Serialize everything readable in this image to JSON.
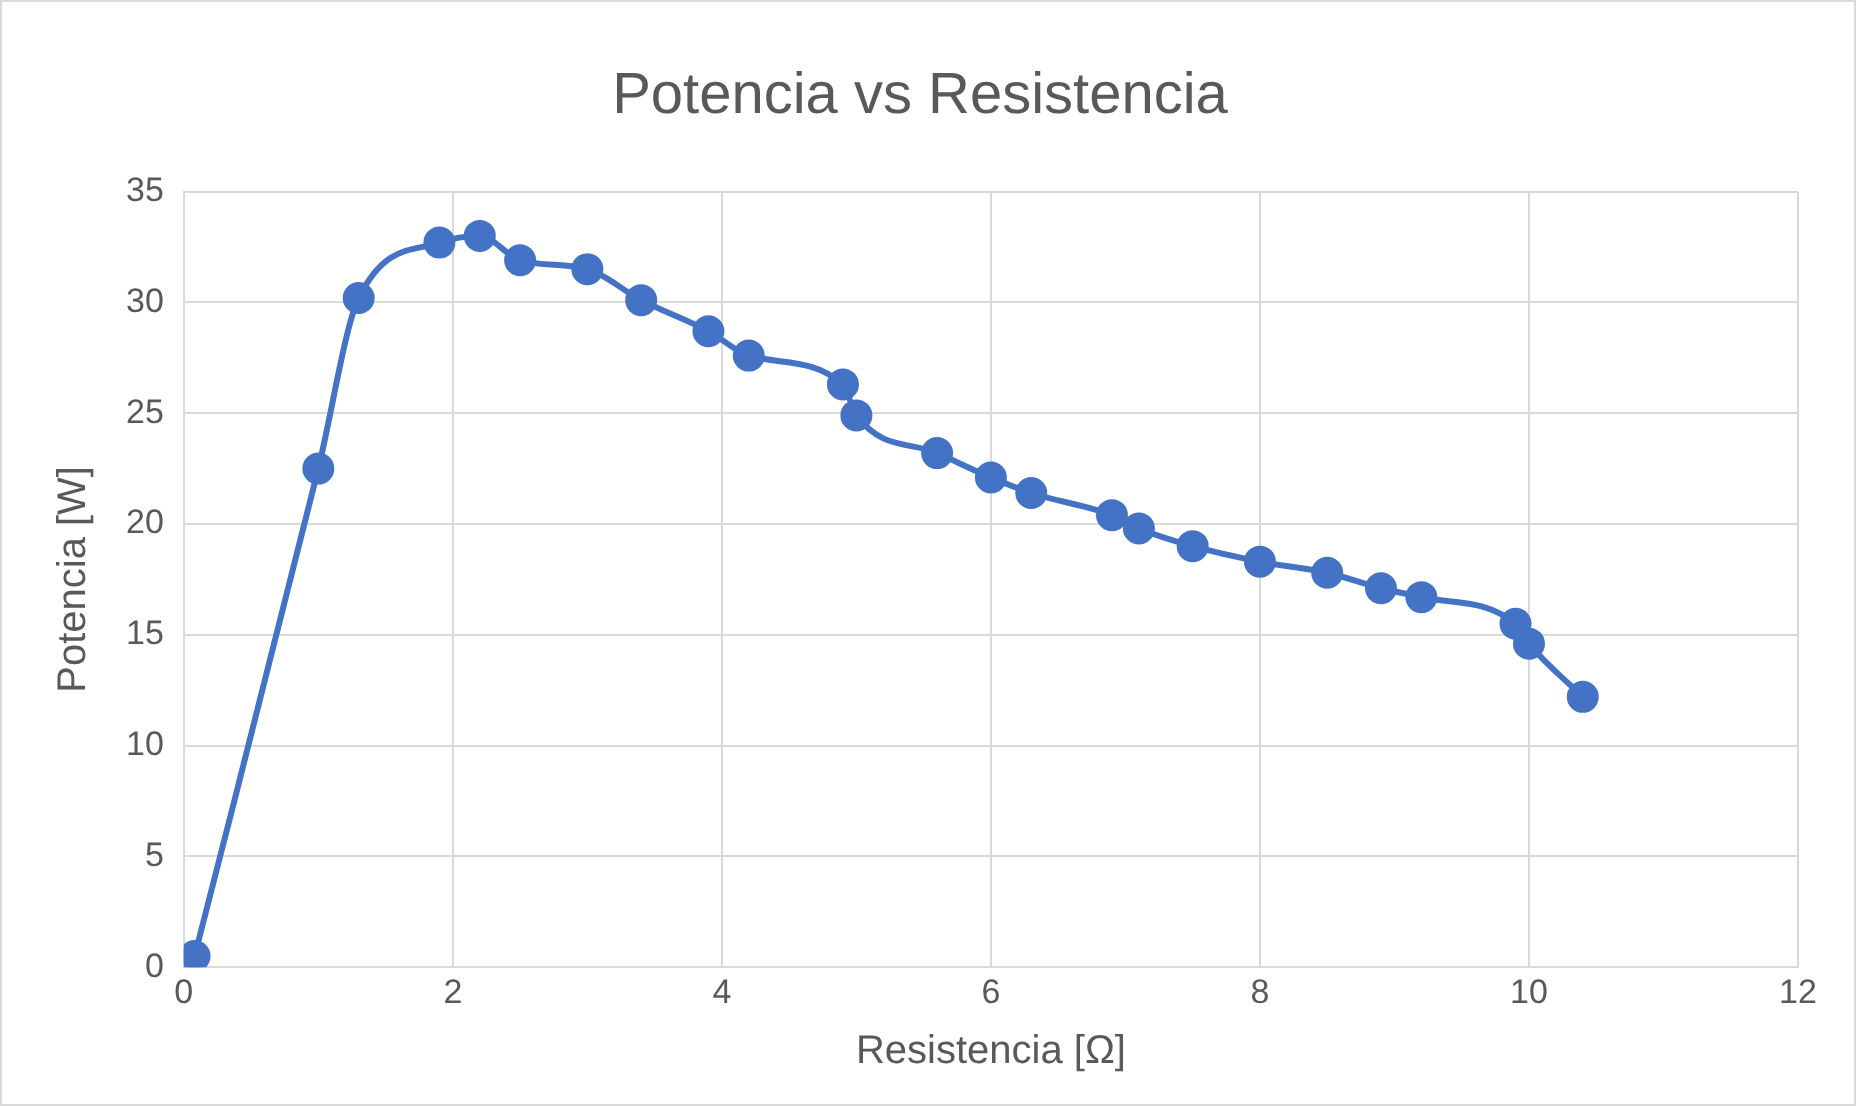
{
  "chart_data": {
    "type": "line",
    "title": "Potencia vs Resistencia",
    "xlabel": "Resistencia [Ω]",
    "ylabel": "Potencia [W]",
    "x": [
      0.08,
      1.0,
      1.3,
      1.9,
      2.2,
      2.5,
      3.0,
      3.4,
      3.9,
      4.2,
      4.9,
      5.0,
      5.6,
      6.0,
      6.3,
      6.9,
      7.1,
      7.5,
      8.0,
      8.5,
      8.9,
      9.2,
      9.9,
      10.0,
      10.4
    ],
    "series": [
      {
        "color": "#4472c4",
        "values": [
          0.5,
          22.5,
          30.2,
          32.7,
          33.0,
          31.9,
          31.5,
          30.1,
          28.7,
          27.6,
          26.3,
          24.9,
          23.2,
          22.1,
          21.4,
          20.4,
          19.8,
          19.0,
          18.3,
          17.8,
          17.1,
          16.7,
          15.5,
          14.6,
          12.2
        ]
      }
    ],
    "xlim": [
      0,
      12
    ],
    "xticks": [
      0,
      2,
      4,
      6,
      8,
      10,
      12
    ],
    "ylim": [
      0,
      35
    ],
    "yticks": [
      0,
      5,
      10,
      15,
      20,
      25,
      30,
      35
    ],
    "grid": true,
    "legend": false,
    "marker": "circle",
    "line_style": "solid"
  }
}
